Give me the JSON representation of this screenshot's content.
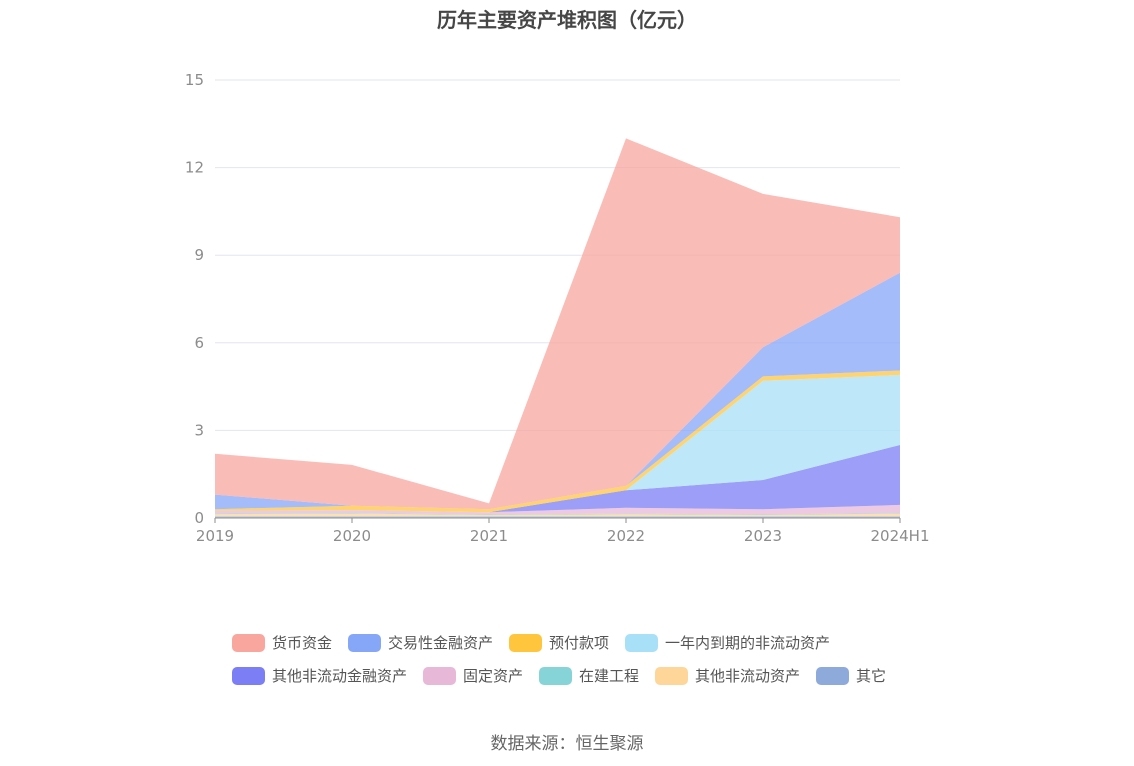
{
  "source": "数据来源：恒生聚源",
  "chart_data": {
    "type": "area",
    "stacked": true,
    "title": "历年主要资产堆积图（亿元）",
    "x": [
      "2019",
      "2020",
      "2021",
      "2022",
      "2023",
      "2024H1"
    ],
    "ylim": [
      0,
      15
    ],
    "yticks": [
      "0",
      "3",
      "6",
      "9",
      "12",
      "15"
    ],
    "grid": true,
    "legend_position": "bottom",
    "series": [
      {
        "name": "其它",
        "color": "#8eaadb",
        "values": [
          0.05,
          0.05,
          0.05,
          0.05,
          0.05,
          0.05
        ]
      },
      {
        "name": "其他非流动资产",
        "color": "#ffd699",
        "values": [
          0.08,
          0.1,
          0.05,
          0.08,
          0.05,
          0.1
        ]
      },
      {
        "name": "在建工程",
        "color": "#86d4d8",
        "values": [
          0.02,
          0.02,
          0.02,
          0.02,
          0.02,
          0.02
        ]
      },
      {
        "name": "固定资产",
        "color": "#e8b8d8",
        "values": [
          0.1,
          0.1,
          0.08,
          0.2,
          0.18,
          0.28
        ]
      },
      {
        "name": "其他非流动金融资产",
        "color": "#7b7ef5",
        "values": [
          0.0,
          0.0,
          0.0,
          0.6,
          1.0,
          2.05
        ]
      },
      {
        "name": "一年内到期的非流动资产",
        "color": "#a8e0f8",
        "values": [
          0.0,
          0.0,
          0.0,
          0.0,
          3.4,
          2.4
        ]
      },
      {
        "name": "预付款项",
        "color": "#ffc53d",
        "values": [
          0.05,
          0.15,
          0.1,
          0.15,
          0.15,
          0.15
        ]
      },
      {
        "name": "交易性金融资产",
        "color": "#86a6f8",
        "values": [
          0.5,
          0.0,
          0.0,
          0.0,
          1.0,
          3.35
        ]
      },
      {
        "name": "货币资金",
        "color": "#f8a69e",
        "values": [
          1.4,
          1.4,
          0.2,
          11.9,
          5.25,
          1.9
        ]
      }
    ],
    "legend_order": [
      "货币资金",
      "交易性金融资产",
      "预付款项",
      "一年内到期的非流动资产",
      "其他非流动金融资产",
      "固定资产",
      "在建工程",
      "其他非流动资产",
      "其它"
    ]
  }
}
